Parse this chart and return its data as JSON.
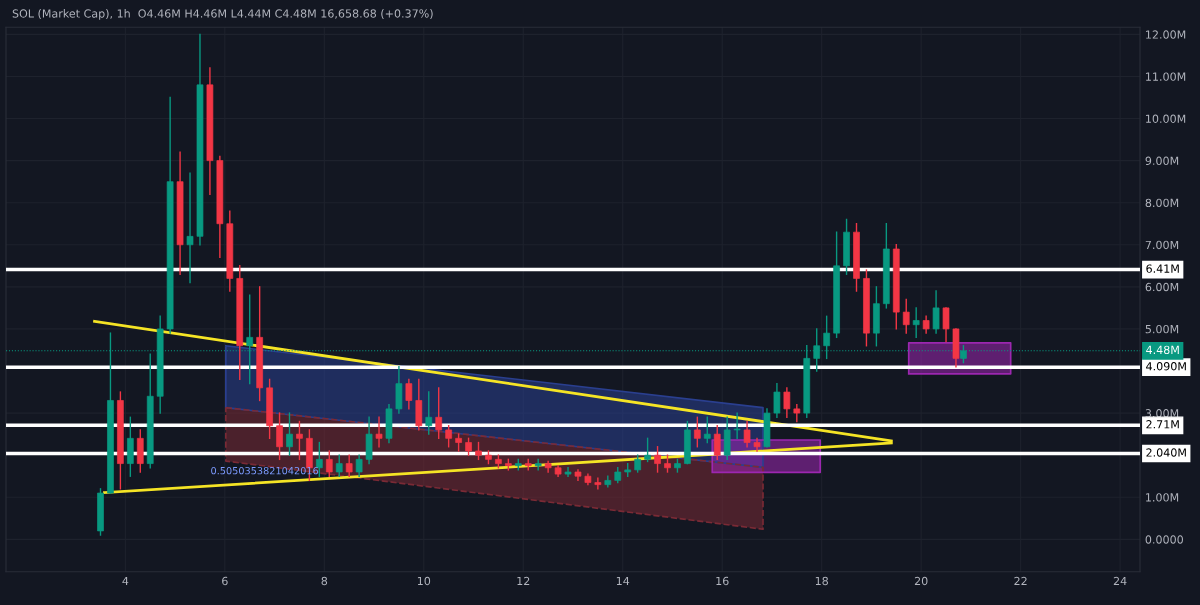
{
  "chart_data": {
    "type": "candlestick",
    "title": "SOL (Market Cap), 1h  O4.46M H4.46M L4.44M C4.48M 16,658.68 (+0.37%)",
    "x": [
      3.5,
      3.7,
      3.9,
      4.1,
      4.3,
      4.5,
      4.7,
      4.9,
      5.1,
      5.3,
      5.5,
      5.7,
      5.9,
      6.1,
      6.3,
      6.5,
      6.7,
      6.9,
      7.1,
      7.3,
      7.5,
      7.7,
      7.9,
      8.1,
      8.3,
      8.5,
      8.7,
      8.9,
      9.1,
      9.3,
      9.5,
      9.7,
      9.9,
      10.1,
      10.3,
      10.5,
      10.7,
      10.9,
      11.1,
      11.3,
      11.5,
      11.7,
      11.9,
      12.1,
      12.3,
      12.5,
      12.7,
      12.9,
      13.1,
      13.3,
      13.5,
      13.7,
      13.9,
      14.1,
      14.3,
      14.5,
      14.7,
      14.9,
      15.1,
      15.3,
      15.5,
      15.7,
      15.9,
      16.1,
      16.3,
      16.5,
      16.7,
      16.9,
      17.1,
      17.3,
      17.5,
      17.7,
      17.9,
      18.1,
      18.3,
      18.5,
      18.7,
      18.9,
      19.1,
      19.3,
      19.5,
      19.7,
      19.9,
      20.1,
      20.3,
      20.5,
      20.7,
      20.85
    ],
    "ohlc": [
      [
        0.2,
        1.2,
        0.1,
        1.1
      ],
      [
        1.1,
        4.9,
        1.1,
        3.3
      ],
      [
        3.3,
        3.5,
        1.2,
        1.8
      ],
      [
        1.8,
        2.9,
        1.5,
        2.4
      ],
      [
        2.4,
        2.6,
        1.6,
        1.8
      ],
      [
        1.8,
        4.4,
        1.7,
        3.4
      ],
      [
        3.4,
        5.3,
        3.0,
        5.0
      ],
      [
        5.0,
        10.5,
        4.9,
        8.5
      ],
      [
        8.5,
        9.2,
        6.3,
        7.0
      ],
      [
        7.0,
        8.7,
        6.1,
        7.2
      ],
      [
        7.2,
        12.0,
        7.0,
        10.8
      ],
      [
        10.8,
        11.2,
        8.2,
        9.0
      ],
      [
        9.0,
        9.1,
        6.7,
        7.5
      ],
      [
        7.5,
        7.8,
        5.9,
        6.2
      ],
      [
        6.2,
        6.5,
        3.8,
        4.6
      ],
      [
        4.6,
        5.8,
        3.7,
        4.8
      ],
      [
        4.8,
        6.0,
        3.3,
        3.6
      ],
      [
        3.6,
        3.8,
        2.4,
        2.7
      ],
      [
        2.7,
        3.0,
        1.9,
        2.2
      ],
      [
        2.2,
        3.0,
        2.0,
        2.5
      ],
      [
        2.5,
        2.8,
        1.9,
        2.4
      ],
      [
        2.4,
        2.6,
        1.4,
        1.7
      ],
      [
        1.7,
        2.3,
        1.5,
        1.9
      ],
      [
        1.9,
        2.1,
        1.5,
        1.6
      ],
      [
        1.6,
        2.0,
        1.5,
        1.8
      ],
      [
        1.8,
        2.0,
        1.5,
        1.6
      ],
      [
        1.6,
        2.0,
        1.5,
        1.9
      ],
      [
        1.9,
        2.9,
        1.8,
        2.5
      ],
      [
        2.5,
        2.9,
        2.2,
        2.4
      ],
      [
        2.4,
        3.2,
        2.3,
        3.1
      ],
      [
        3.1,
        4.1,
        3.0,
        3.7
      ],
      [
        3.7,
        3.8,
        3.1,
        3.3
      ],
      [
        3.3,
        3.8,
        2.6,
        2.7
      ],
      [
        2.7,
        3.5,
        2.5,
        2.9
      ],
      [
        2.9,
        3.6,
        2.4,
        2.6
      ],
      [
        2.6,
        2.7,
        2.2,
        2.4
      ],
      [
        2.4,
        2.5,
        2.1,
        2.3
      ],
      [
        2.3,
        2.4,
        2.0,
        2.1
      ],
      [
        2.1,
        2.3,
        1.9,
        2.0
      ],
      [
        2.0,
        2.1,
        1.8,
        1.9
      ],
      [
        1.9,
        2.0,
        1.7,
        1.8
      ],
      [
        1.8,
        1.9,
        1.65,
        1.75
      ],
      [
        1.75,
        1.9,
        1.65,
        1.8
      ],
      [
        1.8,
        1.9,
        1.65,
        1.75
      ],
      [
        1.75,
        1.9,
        1.65,
        1.8
      ],
      [
        1.8,
        1.85,
        1.6,
        1.7
      ],
      [
        1.7,
        1.75,
        1.5,
        1.55
      ],
      [
        1.55,
        1.7,
        1.5,
        1.6
      ],
      [
        1.6,
        1.65,
        1.4,
        1.5
      ],
      [
        1.5,
        1.55,
        1.3,
        1.35
      ],
      [
        1.35,
        1.45,
        1.2,
        1.3
      ],
      [
        1.3,
        1.5,
        1.25,
        1.4
      ],
      [
        1.4,
        1.7,
        1.35,
        1.6
      ],
      [
        1.6,
        1.8,
        1.5,
        1.65
      ],
      [
        1.65,
        2.0,
        1.6,
        1.9
      ],
      [
        1.9,
        2.4,
        1.85,
        2.0
      ],
      [
        2.0,
        2.2,
        1.6,
        1.8
      ],
      [
        1.8,
        2.0,
        1.6,
        1.7
      ],
      [
        1.7,
        1.9,
        1.6,
        1.8
      ],
      [
        1.8,
        2.8,
        1.8,
        2.6
      ],
      [
        2.6,
        2.9,
        2.2,
        2.4
      ],
      [
        2.4,
        2.9,
        2.3,
        2.5
      ],
      [
        2.5,
        2.7,
        1.9,
        2.0
      ],
      [
        2.0,
        2.9,
        1.9,
        2.6
      ],
      [
        2.6,
        3.0,
        2.4,
        2.6
      ],
      [
        2.6,
        2.8,
        2.2,
        2.3
      ],
      [
        2.3,
        2.4,
        2.1,
        2.2
      ],
      [
        2.2,
        3.1,
        2.2,
        3.0
      ],
      [
        3.0,
        3.7,
        2.9,
        3.5
      ],
      [
        3.5,
        3.6,
        2.9,
        3.1
      ],
      [
        3.1,
        3.2,
        2.8,
        3.0
      ],
      [
        3.0,
        4.6,
        2.9,
        4.3
      ],
      [
        4.3,
        5.0,
        4.0,
        4.6
      ],
      [
        4.6,
        5.3,
        4.3,
        4.9
      ],
      [
        4.9,
        7.3,
        4.8,
        6.5
      ],
      [
        6.5,
        7.6,
        6.3,
        7.3
      ],
      [
        7.3,
        7.5,
        5.9,
        6.2
      ],
      [
        6.2,
        6.4,
        4.6,
        4.9
      ],
      [
        4.9,
        6.0,
        4.6,
        5.6
      ],
      [
        5.6,
        7.5,
        5.5,
        6.9
      ],
      [
        6.9,
        7.0,
        5.0,
        5.4
      ],
      [
        5.4,
        5.7,
        4.9,
        5.1
      ],
      [
        5.1,
        5.5,
        4.8,
        5.2
      ],
      [
        5.2,
        5.3,
        4.9,
        5.0
      ],
      [
        5.0,
        5.9,
        4.9,
        5.5
      ],
      [
        5.5,
        5.5,
        4.7,
        5.0
      ],
      [
        5.0,
        5.0,
        4.1,
        4.3
      ],
      [
        4.3,
        4.6,
        4.2,
        4.48
      ]
    ],
    "colors": [
      "#089981",
      "#089981",
      "#f23645",
      "#089981",
      "#f23645",
      "#089981",
      "#089981",
      "#089981",
      "#f23645",
      "#089981",
      "#089981",
      "#f23645",
      "#f23645",
      "#f23645",
      "#f23645",
      "#089981",
      "#f23645",
      "#f23645",
      "#f23645",
      "#089981",
      "#f23645",
      "#f23645",
      "#089981",
      "#f23645",
      "#089981",
      "#f23645",
      "#089981",
      "#089981",
      "#f23645",
      "#089981",
      "#089981",
      "#f23645",
      "#f23645",
      "#089981",
      "#f23645",
      "#f23645",
      "#f23645",
      "#f23645",
      "#f23645",
      "#f23645",
      "#f23645",
      "#f23645",
      "#089981",
      "#f23645",
      "#089981",
      "#f23645",
      "#f23645",
      "#089981",
      "#f23645",
      "#f23645",
      "#f23645",
      "#089981",
      "#089981",
      "#089981",
      "#089981",
      "#089981",
      "#f23645",
      "#f23645",
      "#089981",
      "#089981",
      "#f23645",
      "#089981",
      "#f23645",
      "#089981",
      "#089981",
      "#f23645",
      "#f23645",
      "#089981",
      "#089981",
      "#f23645",
      "#f23645",
      "#089981",
      "#089981",
      "#089981",
      "#089981",
      "#089981",
      "#f23645",
      "#f23645",
      "#089981",
      "#089981",
      "#f23645",
      "#f23645",
      "#089981",
      "#f23645",
      "#089981",
      "#f23645",
      "#f23645",
      "#089981"
    ],
    "series": [
      {
        "type": "area",
        "color": "#2a3f8f",
        "x": [
          6.02,
          16.82,
          16.82,
          6.02,
          6.02
        ],
        "values": [
          4.6,
          3.13,
          1.71,
          3.13,
          4.6
        ]
      },
      {
        "type": "area",
        "color": "#7a2a35",
        "x": [
          6.02,
          16.82,
          16.82,
          6.02,
          6.02
        ],
        "values": [
          3.13,
          1.71,
          0.24,
          1.86,
          3.13
        ],
        "line_style": "dashed"
      },
      {
        "type": "area",
        "color": "#9c27b0",
        "x": [
          15.8,
          17.97,
          17.97,
          15.8,
          15.8
        ],
        "values": [
          1.59,
          1.59,
          2.36,
          2.36,
          1.59
        ]
      },
      {
        "type": "area",
        "color": "#9c27b0",
        "x": [
          19.75,
          21.8,
          21.8,
          19.75,
          19.75
        ],
        "values": [
          3.93,
          3.93,
          4.67,
          4.67,
          3.93
        ]
      },
      {
        "type": "line",
        "color": "#f5e425",
        "x": [
          3.38,
          19.4
        ],
        "values": [
          5.18,
          2.34
        ]
      },
      {
        "type": "line",
        "color": "#f5e425",
        "x": [
          3.58,
          19.4
        ],
        "values": [
          1.11,
          2.29
        ]
      }
    ],
    "ref_lines": [
      {
        "axis": "y",
        "value": 6.41,
        "label": "6.41M",
        "color": "#ffffff"
      },
      {
        "axis": "y",
        "value": 4.09,
        "label": "4.090M",
        "color": "#ffffff"
      },
      {
        "axis": "y",
        "value": 2.71,
        "label": "2.71M",
        "color": "#ffffff"
      },
      {
        "axis": "y",
        "value": 2.04,
        "label": "2.040M",
        "color": "#ffffff"
      },
      {
        "axis": "y",
        "value": 4.48,
        "label": "4.48M",
        "color": "#089981",
        "line_style": "dotted"
      }
    ],
    "annotations": [
      {
        "text": "0.5050353821042016",
        "x": 6.8,
        "y": 1.5
      }
    ],
    "xlim": [
      1.6,
      24.4
    ],
    "xticks": [
      4,
      6,
      8,
      10,
      12,
      14,
      16,
      18,
      20,
      22,
      24
    ],
    "ylim": [
      -0.77,
      12.17
    ],
    "yticks": [
      {
        "value": 0,
        "label": "0.0000"
      },
      {
        "value": 1,
        "label": "1.00M"
      },
      {
        "value": 3,
        "label": "3.00M"
      },
      {
        "value": 5,
        "label": "5.00M"
      },
      {
        "value": 6,
        "label": "6.00M"
      },
      {
        "value": 7,
        "label": "7.00M"
      },
      {
        "value": 8,
        "label": "8.00M"
      },
      {
        "value": 9,
        "label": "9.00M"
      },
      {
        "value": 10,
        "label": "10.00M"
      },
      {
        "value": 11,
        "label": "11.00M"
      },
      {
        "value": 12,
        "label": "12.00M"
      }
    ],
    "grid": true,
    "legend": false
  }
}
